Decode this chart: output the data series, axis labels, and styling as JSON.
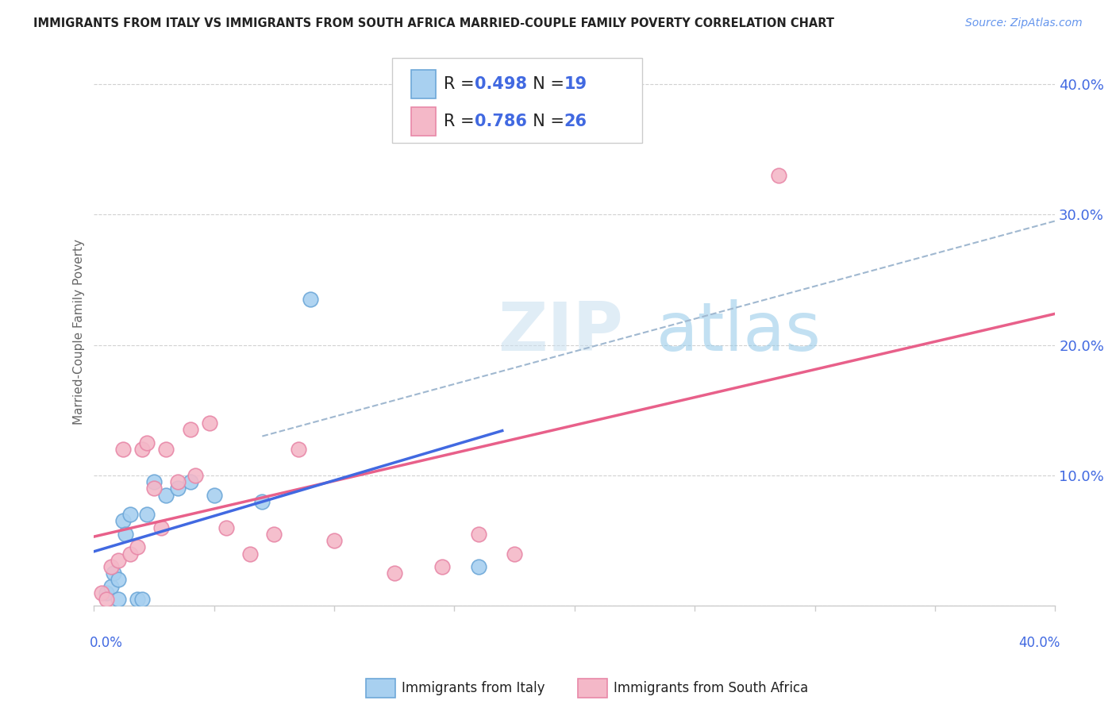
{
  "title": "IMMIGRANTS FROM ITALY VS IMMIGRANTS FROM SOUTH AFRICA MARRIED-COUPLE FAMILY POVERTY CORRELATION CHART",
  "source": "Source: ZipAtlas.com",
  "ylabel": "Married-Couple Family Poverty",
  "xlim": [
    0.0,
    0.4
  ],
  "ylim": [
    0.0,
    0.42
  ],
  "italy_color": "#A8D0F0",
  "italy_edge": "#6EA8D8",
  "south_africa_color": "#F4B8C8",
  "south_africa_edge": "#E888A8",
  "italy_R": 0.498,
  "italy_N": 19,
  "south_africa_R": 0.786,
  "south_africa_N": 26,
  "italy_line_color": "#4169E1",
  "south_africa_line_color": "#E8608A",
  "dashed_line_color": "#A0B8D0",
  "watermark_color": "#C8DFF0",
  "italy_scatter_x": [
    0.005,
    0.007,
    0.008,
    0.01,
    0.01,
    0.012,
    0.013,
    0.015,
    0.018,
    0.02,
    0.022,
    0.025,
    0.03,
    0.035,
    0.04,
    0.05,
    0.07,
    0.09,
    0.16
  ],
  "italy_scatter_y": [
    0.01,
    0.015,
    0.025,
    0.005,
    0.02,
    0.065,
    0.055,
    0.07,
    0.005,
    0.005,
    0.07,
    0.095,
    0.085,
    0.09,
    0.095,
    0.085,
    0.08,
    0.235,
    0.03
  ],
  "south_africa_scatter_x": [
    0.003,
    0.005,
    0.007,
    0.01,
    0.012,
    0.015,
    0.018,
    0.02,
    0.022,
    0.025,
    0.028,
    0.03,
    0.035,
    0.04,
    0.042,
    0.048,
    0.055,
    0.065,
    0.075,
    0.085,
    0.1,
    0.125,
    0.145,
    0.16,
    0.175,
    0.285
  ],
  "south_africa_scatter_y": [
    0.01,
    0.005,
    0.03,
    0.035,
    0.12,
    0.04,
    0.045,
    0.12,
    0.125,
    0.09,
    0.06,
    0.12,
    0.095,
    0.135,
    0.1,
    0.14,
    0.06,
    0.04,
    0.055,
    0.12,
    0.05,
    0.025,
    0.03,
    0.055,
    0.04,
    0.33
  ],
  "italy_marker_size": 180,
  "south_africa_marker_size": 180,
  "grid_color": "#CCCCCC",
  "background_color": "#FFFFFF",
  "text_blue": "#4169E1",
  "text_dark": "#333333"
}
